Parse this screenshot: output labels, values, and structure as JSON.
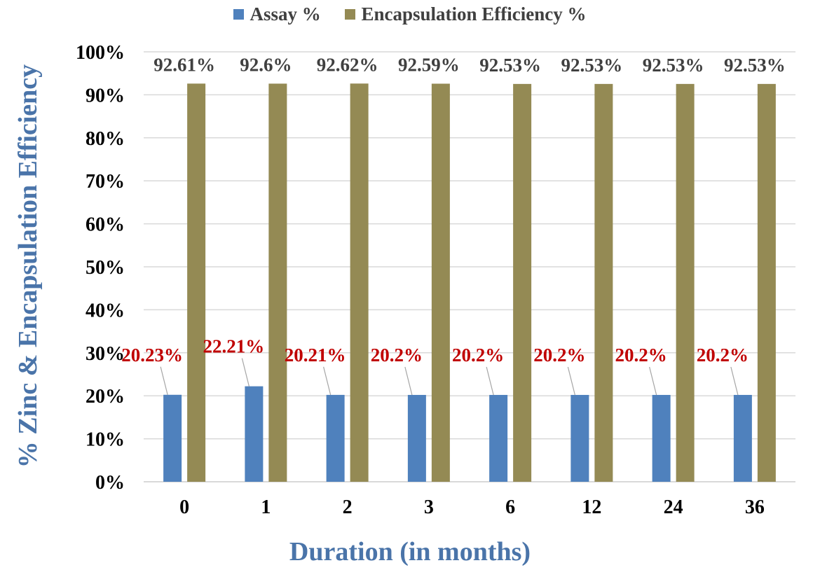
{
  "chart_data": {
    "type": "bar",
    "categories": [
      "0",
      "1",
      "2",
      "3",
      "6",
      "12",
      "24",
      "36"
    ],
    "series": [
      {
        "name": "Assay %",
        "values": [
          20.23,
          22.21,
          20.21,
          20.2,
          20.2,
          20.2,
          20.2,
          20.2
        ],
        "labels": [
          "20.23%",
          "22.21%",
          "20.21%",
          "20.2%",
          "20.2%",
          "20.2%",
          "20.2%",
          "20.2%"
        ],
        "color": "#4f81bd",
        "label_color": "#c00000"
      },
      {
        "name": "Encapsulation Efficiency %",
        "values": [
          92.61,
          92.6,
          92.62,
          92.59,
          92.53,
          92.53,
          92.53,
          92.53
        ],
        "labels": [
          "92.61%",
          "92.6%",
          "92.62%",
          "92.59%",
          "92.53%",
          "92.53%",
          "92.53%",
          "92.53%"
        ],
        "color": "#948a54",
        "label_color": "#404040"
      }
    ],
    "ylim": [
      0,
      100
    ],
    "yticks": [
      "0%",
      "10%",
      "20%",
      "30%",
      "40%",
      "50%",
      "60%",
      "70%",
      "80%",
      "90%",
      "100%"
    ],
    "xlabel": "Duration (in months)",
    "ylabel": "% Zinc & Encapsulation Efficiency",
    "legend_position": "top",
    "grid": true,
    "grid_color": "#d9d9d9",
    "axis_title_color": "#4a74a9"
  }
}
